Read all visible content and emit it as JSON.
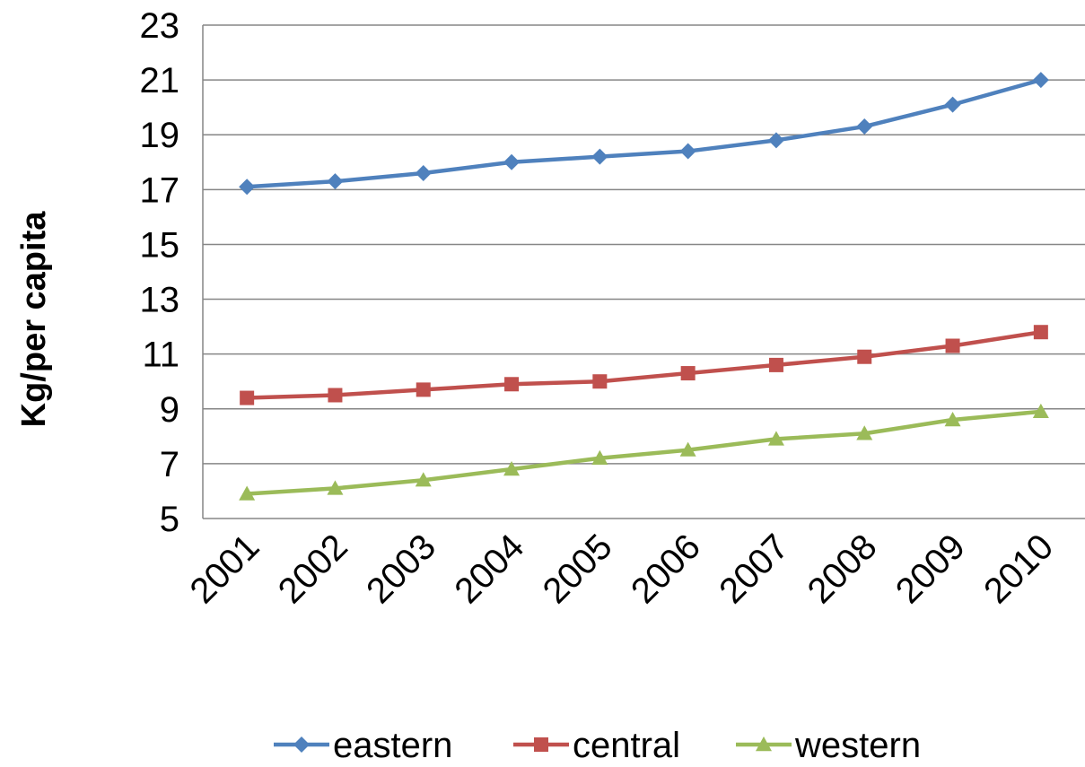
{
  "chart_data": {
    "type": "line",
    "title": "",
    "xlabel": "",
    "ylabel": "Kg/per capita",
    "categories": [
      "2001",
      "2002",
      "2003",
      "2004",
      "2005",
      "2006",
      "2007",
      "2008",
      "2009",
      "2010"
    ],
    "ylim": [
      5,
      23
    ],
    "yticks": [
      "5",
      "7",
      "9",
      "11",
      "13",
      "15",
      "17",
      "19",
      "21",
      "23"
    ],
    "grid": true,
    "legend_position": "bottom",
    "series": [
      {
        "name": "eastern",
        "color": "#4f81bd",
        "marker": "diamond",
        "values": [
          17.1,
          17.3,
          17.6,
          18.0,
          18.2,
          18.4,
          18.8,
          19.3,
          20.1,
          21.0
        ]
      },
      {
        "name": "central",
        "color": "#c0504d",
        "marker": "square",
        "values": [
          9.4,
          9.5,
          9.7,
          9.9,
          10.0,
          10.3,
          10.6,
          10.9,
          11.3,
          11.8
        ]
      },
      {
        "name": "western",
        "color": "#9bbb59",
        "marker": "triangle",
        "values": [
          5.9,
          6.1,
          6.4,
          6.8,
          7.2,
          7.5,
          7.9,
          8.1,
          8.6,
          8.9
        ]
      }
    ]
  }
}
